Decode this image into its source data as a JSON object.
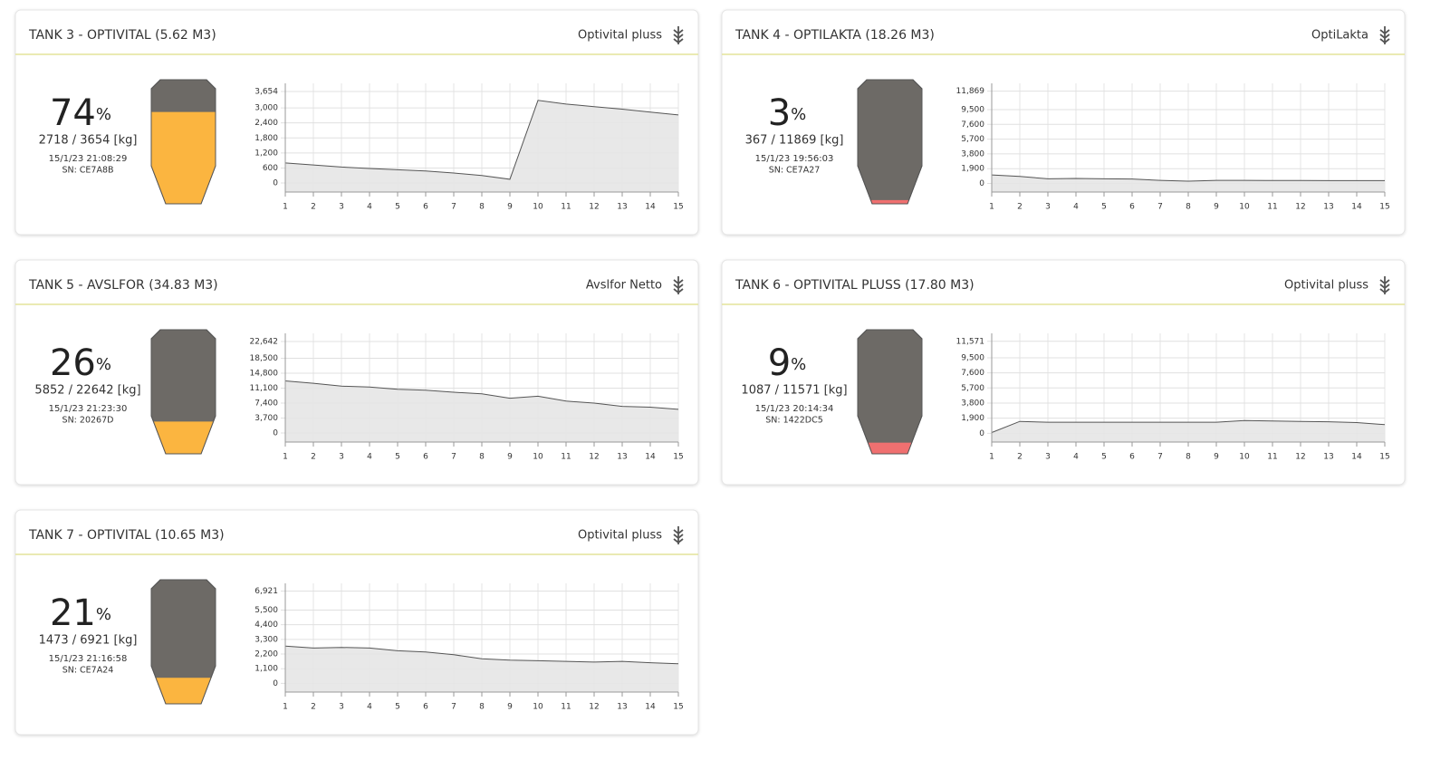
{
  "tanks": [
    {
      "title": "TANK 3 - OPTIVITAL (5.62 M3)",
      "product": "Optivital pluss",
      "percent": 74,
      "percent_unit": "%",
      "weight": "2718 / 3654 [kg]",
      "timestamp": "15/1/23 21:08:29",
      "sn": "SN: CE7A8B",
      "fill_color": "#fbb540",
      "chart": {
        "type": "area",
        "x": [
          1,
          2,
          3,
          4,
          5,
          6,
          7,
          8,
          9,
          10,
          11,
          12,
          13,
          14,
          15
        ],
        "xlim": [
          1,
          15
        ],
        "values": [
          800,
          720,
          640,
          580,
          530,
          480,
          400,
          300,
          150,
          3300,
          3150,
          3050,
          2950,
          2830,
          2718
        ],
        "ylim": [
          -360,
          3980
        ],
        "yticks": [
          0,
          600,
          {
            "value": 1200,
            "label": "1,200"
          },
          {
            "value": 1800,
            "label": "1,800"
          },
          {
            "value": 2400,
            "label": "2,400"
          },
          {
            "value": 3000,
            "label": "3,000"
          },
          {
            "value": 3654,
            "label": "3,654"
          }
        ]
      }
    },
    {
      "title": "TANK 4 - OPTILAKTA (18.26 M3)",
      "product": "OptiLakta",
      "percent": 3,
      "percent_unit": "%",
      "weight": "367 / 11869 [kg]",
      "timestamp": "15/1/23 19:56:03",
      "sn": "SN: CE7A27",
      "fill_color": "#f07070",
      "chart": {
        "type": "area",
        "x": [
          1,
          2,
          3,
          4,
          5,
          6,
          7,
          8,
          9,
          10,
          11,
          12,
          13,
          14,
          15
        ],
        "xlim": [
          1,
          15
        ],
        "values": [
          1100,
          900,
          600,
          650,
          600,
          580,
          400,
          300,
          400,
          400,
          380,
          380,
          370,
          370,
          367
        ],
        "ylim": [
          -1100,
          12870
        ],
        "yticks": [
          0,
          {
            "value": 1900,
            "label": "1,900"
          },
          {
            "value": 3800,
            "label": "3,800"
          },
          {
            "value": 5700,
            "label": "5,700"
          },
          {
            "value": 7600,
            "label": "7,600"
          },
          {
            "value": 9500,
            "label": "9,500"
          },
          {
            "value": 11869,
            "label": "11,869"
          }
        ]
      }
    },
    {
      "title": "TANK 5 - AVSLFOR (34.83 M3)",
      "product": "Avslfor Netto",
      "percent": 26,
      "percent_unit": "%",
      "weight": "5852 / 22642 [kg]",
      "timestamp": "15/1/23 21:23:30",
      "sn": "SN: 20267D",
      "fill_color": "#fbb540",
      "chart": {
        "type": "area",
        "x": [
          1,
          2,
          3,
          4,
          5,
          6,
          7,
          8,
          9,
          10,
          11,
          12,
          13,
          14,
          15
        ],
        "xlim": [
          1,
          15
        ],
        "values": [
          12900,
          12300,
          11600,
          11400,
          10800,
          10600,
          10100,
          9700,
          8600,
          9100,
          7900,
          7400,
          6600,
          6400,
          5852
        ],
        "ylim": [
          -2240,
          24660
        ],
        "yticks": [
          0,
          {
            "value": 3700,
            "label": "3,700"
          },
          {
            "value": 7400,
            "label": "7,400"
          },
          {
            "value": 11100,
            "label": "11,100"
          },
          {
            "value": 14800,
            "label": "14,800"
          },
          {
            "value": 18500,
            "label": "18,500"
          },
          {
            "value": 22642,
            "label": "22,642"
          }
        ]
      }
    },
    {
      "title": "TANK 6 - OPTIVITAL PLUSS (17.80 M3)",
      "product": "Optivital pluss",
      "percent": 9,
      "percent_unit": "%",
      "weight": "1087 / 11571 [kg]",
      "timestamp": "15/1/23 20:14:34",
      "sn": "SN: 1422DC5",
      "fill_color": "#f07070",
      "chart": {
        "type": "area",
        "x": [
          1,
          2,
          3,
          4,
          5,
          6,
          7,
          8,
          9,
          10,
          11,
          12,
          13,
          14,
          15
        ],
        "xlim": [
          1,
          15
        ],
        "values": [
          100,
          1500,
          1400,
          1400,
          1400,
          1400,
          1400,
          1400,
          1400,
          1600,
          1550,
          1500,
          1450,
          1350,
          1087
        ],
        "ylim": [
          -1100,
          12570
        ],
        "yticks": [
          0,
          {
            "value": 1900,
            "label": "1,900"
          },
          {
            "value": 3800,
            "label": "3,800"
          },
          {
            "value": 5700,
            "label": "5,700"
          },
          {
            "value": 7600,
            "label": "7,600"
          },
          {
            "value": 9500,
            "label": "9,500"
          },
          {
            "value": 11571,
            "label": "11,571"
          }
        ]
      }
    },
    {
      "title": "TANK 7 - OPTIVITAL (10.65 M3)",
      "product": "Optivital pluss",
      "percent": 21,
      "percent_unit": "%",
      "weight": "1473 / 6921 [kg]",
      "timestamp": "15/1/23 21:16:58",
      "sn": "SN: CE7A24",
      "fill_color": "#fbb540",
      "chart": {
        "type": "area",
        "x": [
          1,
          2,
          3,
          4,
          5,
          6,
          7,
          8,
          9,
          10,
          11,
          12,
          13,
          14,
          15
        ],
        "xlim": [
          1,
          15
        ],
        "values": [
          2800,
          2650,
          2700,
          2650,
          2450,
          2350,
          2150,
          1850,
          1750,
          1700,
          1650,
          1600,
          1650,
          1550,
          1473
        ],
        "ylim": [
          -650,
          7500
        ],
        "yticks": [
          0,
          {
            "value": 1100,
            "label": "1,100"
          },
          {
            "value": 2200,
            "label": "2,200"
          },
          {
            "value": 3300,
            "label": "3,300"
          },
          {
            "value": 4400,
            "label": "4,400"
          },
          {
            "value": 5500,
            "label": "5,500"
          },
          {
            "value": 6921,
            "label": "6,921"
          }
        ]
      }
    }
  ]
}
